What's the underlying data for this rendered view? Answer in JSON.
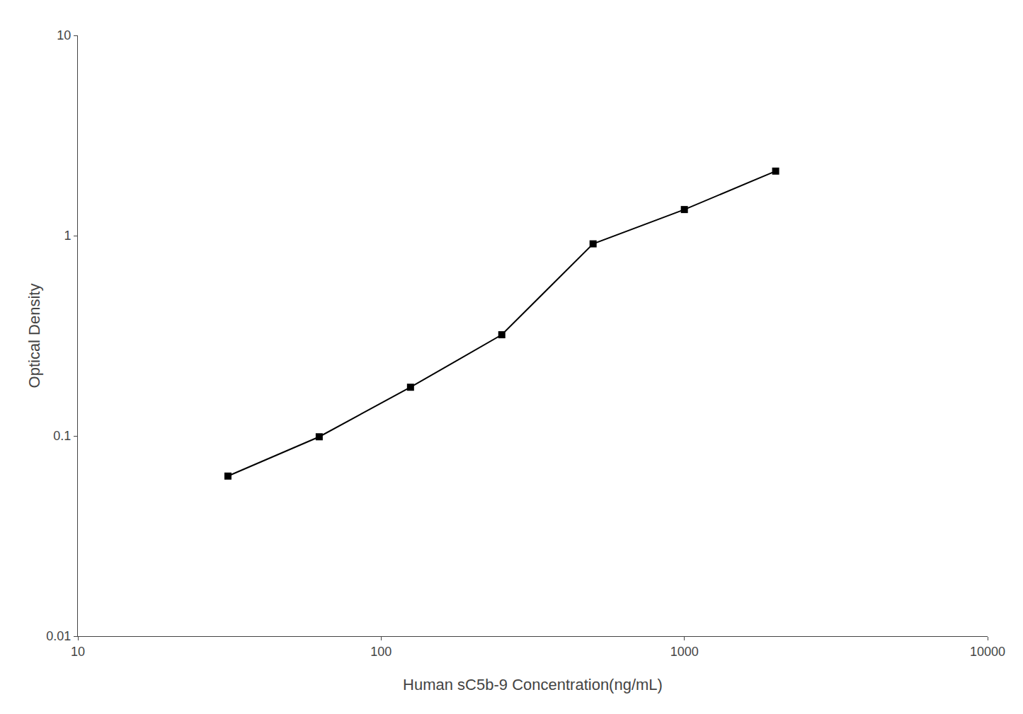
{
  "chart_data": {
    "type": "line",
    "x": [
      31.25,
      62.5,
      125,
      250,
      500,
      1000,
      2000
    ],
    "values": [
      0.063,
      0.099,
      0.175,
      0.32,
      0.91,
      1.35,
      2.1
    ],
    "xlabel": "Human sC5b-9 Concentration(ng/mL)",
    "ylabel": "Optical Density",
    "xlim": [
      10,
      10000
    ],
    "ylim": [
      0.01,
      10
    ],
    "xticks": [
      10,
      100,
      1000,
      10000
    ],
    "yticks": [
      0.01,
      0.1,
      1,
      10
    ],
    "log": true,
    "grid": false,
    "color": "#000000",
    "marker": "square"
  }
}
